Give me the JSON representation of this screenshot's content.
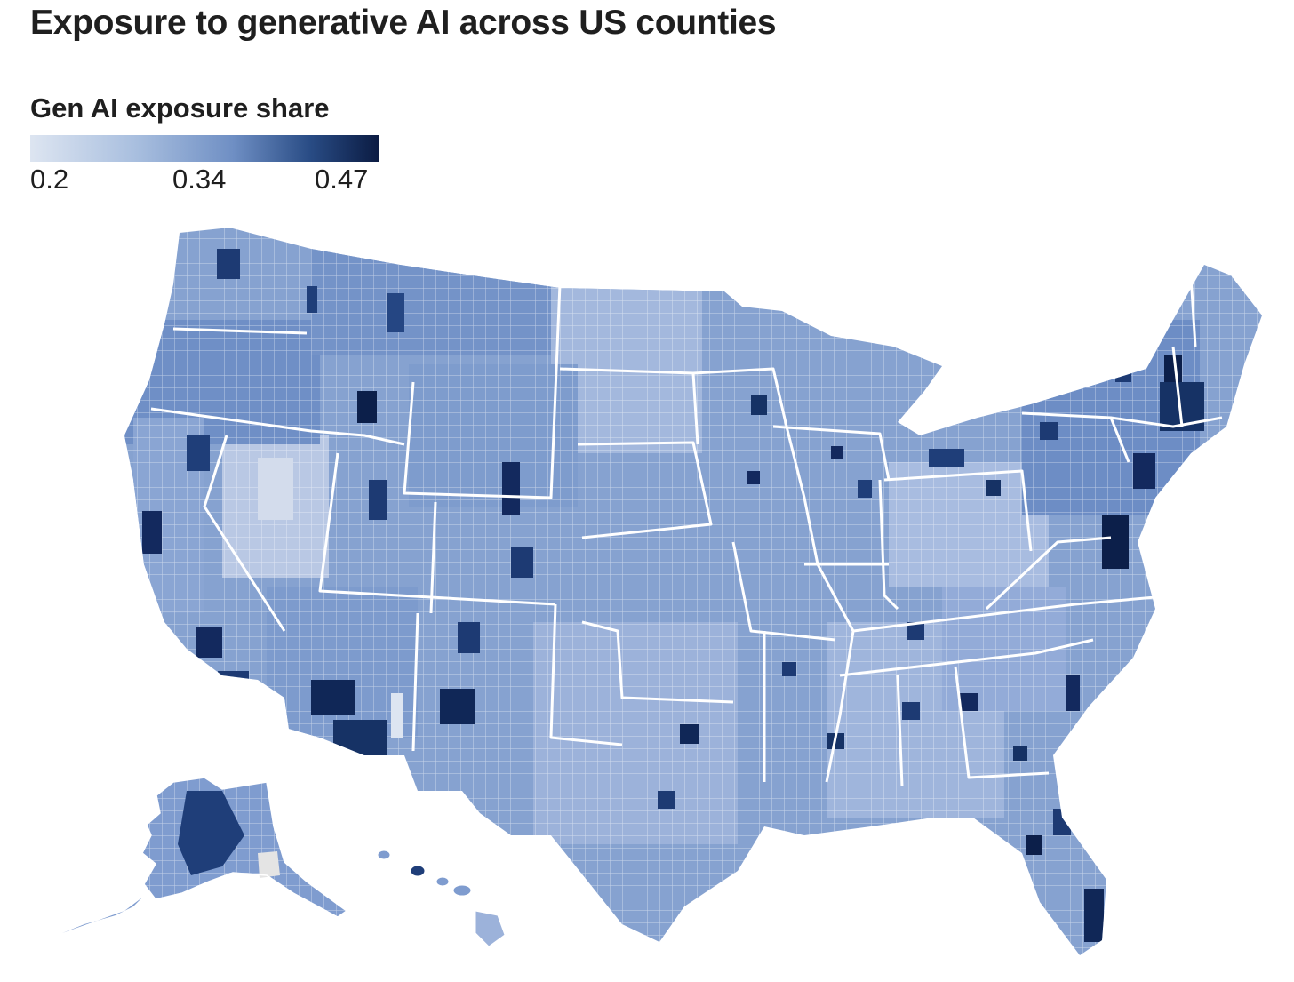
{
  "title": "Exposure to generative AI across US counties",
  "legend": {
    "title": "Gen AI exposure share",
    "min_label": "0.2",
    "mid_label": "0.34",
    "max_label": "0.47",
    "scale": [
      0.2,
      0.47
    ],
    "colors": [
      "#dde5f1",
      "#a9bfdf",
      "#6f8fc4",
      "#294c85",
      "#0b1b42"
    ]
  },
  "map": {
    "subject": "US counties choropleth",
    "regions": [
      "contiguous-us",
      "alaska",
      "hawaii"
    ],
    "border_color": "#ffffff",
    "missing_color": "#e4e4e4"
  }
}
